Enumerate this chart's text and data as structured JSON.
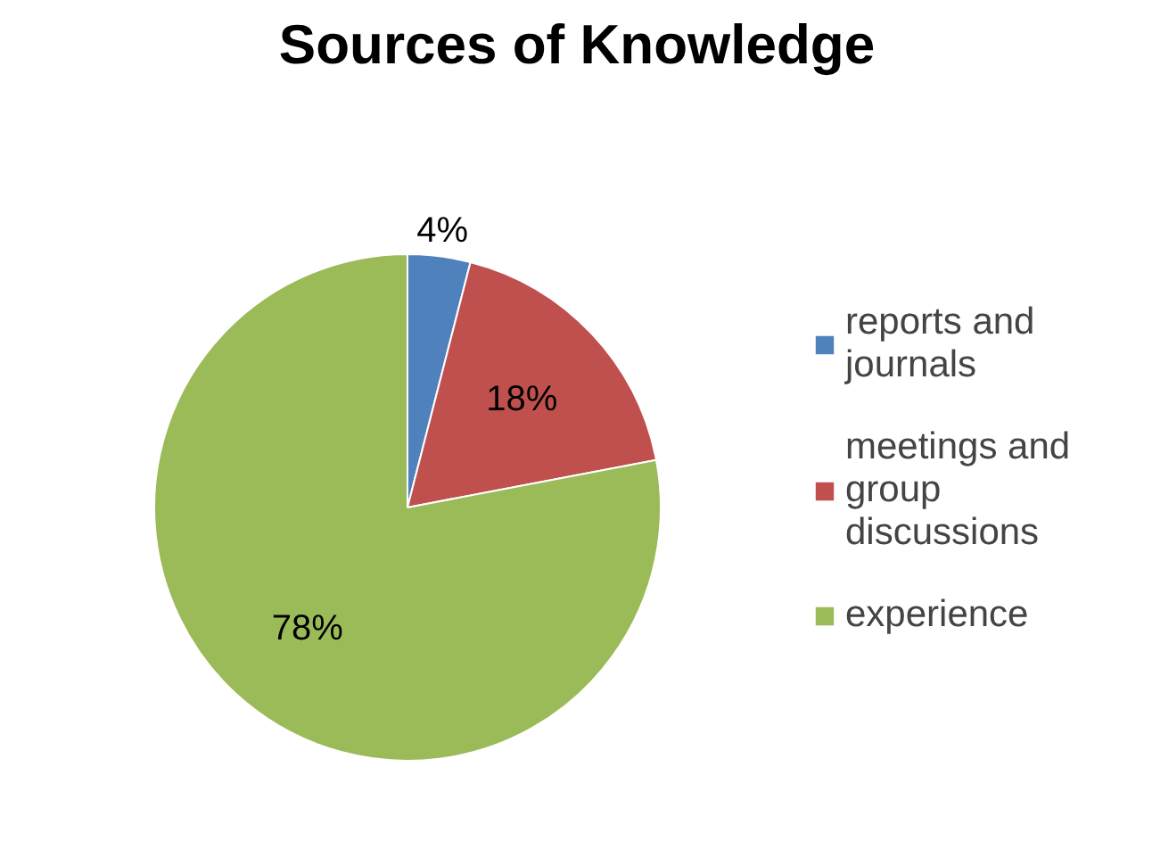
{
  "chart_data": {
    "type": "pie",
    "title": "Sources of Knowledge",
    "categories": [
      "reports and journals",
      "meetings and group discussions",
      "experience"
    ],
    "values": [
      4,
      18,
      78
    ],
    "colors": [
      "#4f81bd",
      "#c0504d",
      "#9bbb59"
    ],
    "value_labels": [
      "4%",
      "18%",
      "78%"
    ],
    "legend": "right"
  }
}
